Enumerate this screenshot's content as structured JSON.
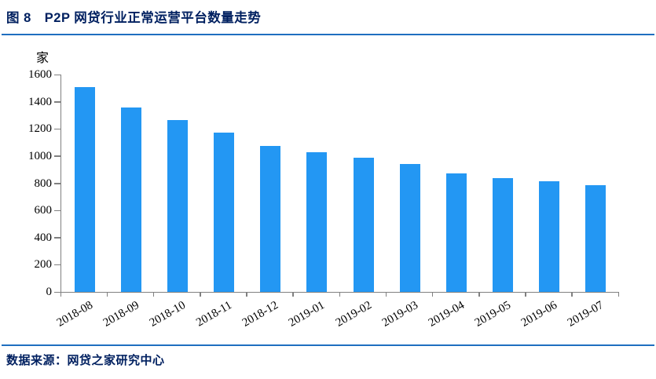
{
  "header": {
    "title": "图 8　P2P 网贷行业正常运营平台数量走势"
  },
  "footer": {
    "source": "数据来源：网贷之家研究中心"
  },
  "colors": {
    "bar": "#2397F3",
    "axis": "#808080",
    "title_text": "#002060",
    "rule": "#1F6FC0",
    "tick_text": "#000000"
  },
  "chart_data": {
    "type": "bar",
    "title": "图 8　P2P 网贷行业正常运营平台数量走势",
    "unit_label": "家",
    "xlabel": "",
    "ylabel": "家",
    "categories": [
      "2018-08",
      "2018-09",
      "2018-10",
      "2018-11",
      "2018-12",
      "2019-01",
      "2019-02",
      "2019-03",
      "2019-04",
      "2019-05",
      "2019-06",
      "2019-07"
    ],
    "values": [
      1510,
      1360,
      1265,
      1175,
      1075,
      1030,
      990,
      940,
      870,
      840,
      815,
      785
    ],
    "ylim": [
      0,
      1600
    ],
    "ytick_step": 200,
    "yticks": [
      "1600",
      "1400",
      "1200",
      "1000",
      "800",
      "600",
      "400",
      "200",
      "0"
    ],
    "grid": false,
    "legend_position": "none",
    "x_label_rotation_deg": -30,
    "source": "数据来源：网贷之家研究中心"
  }
}
